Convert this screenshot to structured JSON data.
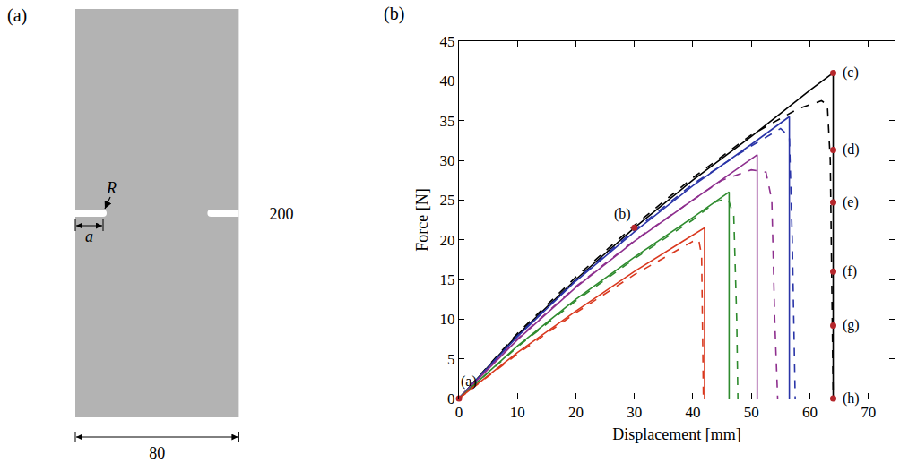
{
  "specimen": {
    "panel_label": "(a)",
    "width": 80,
    "height": 200,
    "notch_label": "a",
    "radius_label": "R"
  },
  "chart_data": {
    "panel_label": "(b)",
    "type": "line",
    "x_label": "Displacement [mm]",
    "y_label": "Force [N]",
    "xlim": [
      0,
      74.5
    ],
    "ylim": [
      0,
      45
    ],
    "xticks": [
      0,
      10,
      20,
      30,
      40,
      50,
      60,
      70
    ],
    "yticks": [
      0,
      5,
      10,
      15,
      20,
      25,
      30,
      35,
      40,
      45
    ],
    "grid": false,
    "series": [
      {
        "color": "#000000",
        "line_style": "solid",
        "x": [
          0,
          10,
          20,
          30,
          40,
          50,
          60,
          64,
          64
        ],
        "values": [
          0,
          8,
          15,
          21.5,
          27.5,
          33,
          38.8,
          41,
          0
        ]
      },
      {
        "color": "#000000",
        "line_style": "dash",
        "x": [
          0,
          10,
          20,
          30,
          40,
          50,
          58,
          62,
          63,
          63.5,
          64
        ],
        "values": [
          0,
          8.2,
          15.3,
          21.8,
          27.8,
          33.2,
          36.5,
          37.5,
          37,
          30,
          0
        ]
      },
      {
        "color": "#2a35a8",
        "line_style": "solid",
        "x": [
          0,
          10,
          20,
          30,
          40,
          50,
          56.5,
          56.5
        ],
        "values": [
          0,
          7.8,
          14.8,
          21,
          26.8,
          32,
          35.5,
          0
        ]
      },
      {
        "color": "#2a35a8",
        "line_style": "dash",
        "x": [
          0,
          10,
          20,
          30,
          40,
          50,
          55,
          56.5,
          57,
          57.5
        ],
        "values": [
          0,
          7.9,
          14.9,
          21.2,
          27,
          31.8,
          34,
          33,
          20,
          0
        ]
      },
      {
        "color": "#8e2f8e",
        "line_style": "solid",
        "x": [
          0,
          10,
          20,
          30,
          40,
          51,
          51
        ],
        "values": [
          0,
          7.4,
          14,
          19.8,
          25,
          30.7,
          0
        ]
      },
      {
        "color": "#8e2f8e",
        "line_style": "dash",
        "x": [
          0,
          10,
          20,
          30,
          40,
          45,
          50,
          52.5,
          53.5,
          54,
          54.5
        ],
        "values": [
          0,
          7.5,
          14.1,
          19.9,
          25,
          27.5,
          28.8,
          28.5,
          25,
          10,
          0
        ]
      },
      {
        "color": "#2e8b2e",
        "line_style": "solid",
        "x": [
          0,
          10,
          20,
          30,
          40,
          46.2,
          46.2
        ],
        "values": [
          0,
          6.6,
          12.5,
          17.8,
          22.8,
          26,
          0
        ]
      },
      {
        "color": "#2e8b2e",
        "line_style": "dash",
        "x": [
          0,
          10,
          20,
          30,
          40,
          44,
          46,
          47,
          47.5,
          47.7
        ],
        "values": [
          0,
          6.5,
          12.3,
          17.6,
          22.5,
          24.8,
          25.2,
          23,
          10,
          0
        ]
      },
      {
        "color": "#d9381e",
        "line_style": "solid",
        "x": [
          0,
          10,
          20,
          30,
          42,
          42
        ],
        "values": [
          0,
          5.8,
          11,
          16,
          21.5,
          0
        ]
      },
      {
        "color": "#d9381e",
        "line_style": "dash",
        "x": [
          0,
          10,
          20,
          30,
          40,
          41,
          41.5,
          41.8
        ],
        "values": [
          0,
          5.6,
          10.8,
          15.6,
          19.8,
          20,
          18,
          0
        ]
      },
      {
        "type": "scatter",
        "marker": "circle",
        "color": "#b5262b",
        "x": [
          0,
          30,
          64,
          64,
          64,
          64,
          64,
          64
        ],
        "values": [
          0,
          21.5,
          41,
          31.3,
          24.7,
          16,
          9.2,
          0
        ]
      }
    ],
    "annotations": [
      {
        "x": 0,
        "y": 0,
        "text": "(a)"
      },
      {
        "x": 30,
        "y": 21.5,
        "text": "(b)"
      },
      {
        "x": 64,
        "y": 41,
        "text": "(c)"
      },
      {
        "x": 64,
        "y": 31.3,
        "text": "(d)"
      },
      {
        "x": 64,
        "y": 24.7,
        "text": "(e)"
      },
      {
        "x": 64,
        "y": 16,
        "text": "(f)"
      },
      {
        "x": 64,
        "y": 9.2,
        "text": "(g)"
      },
      {
        "x": 64,
        "y": 0,
        "text": "(h)"
      }
    ]
  }
}
